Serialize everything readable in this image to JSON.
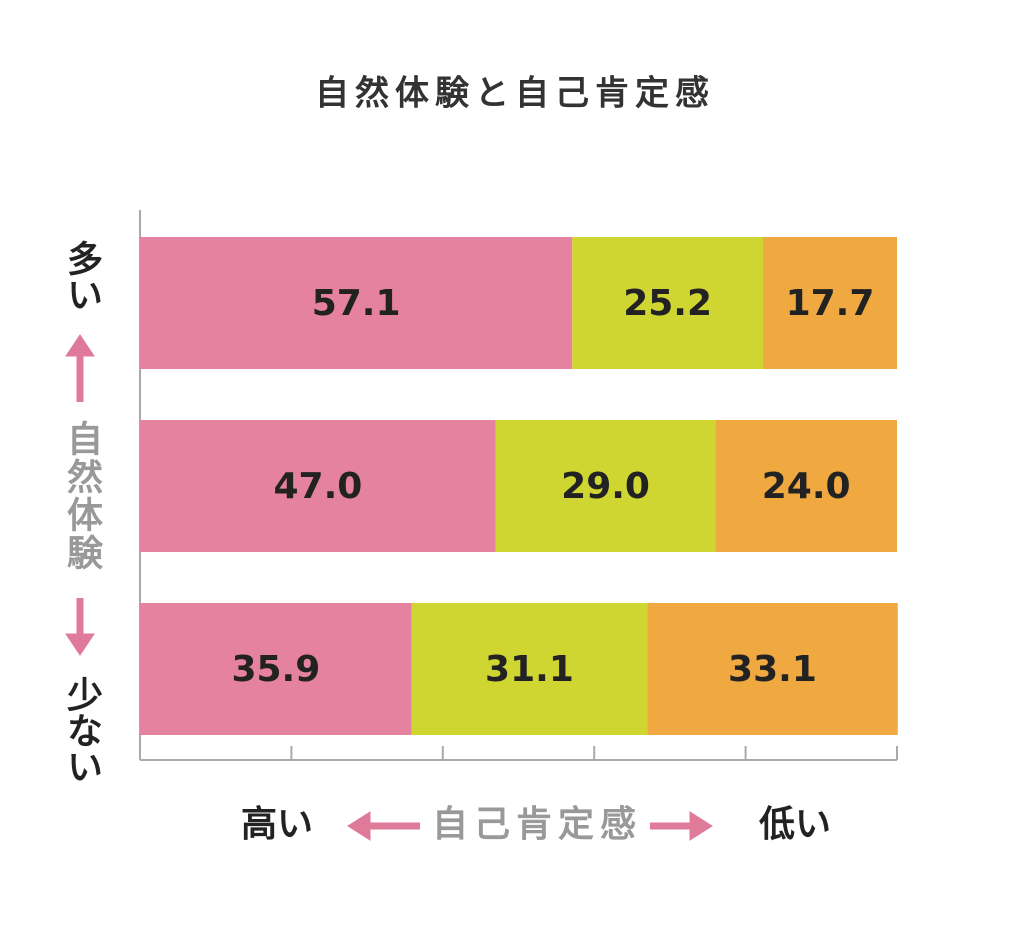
{
  "chart_data": {
    "type": "stacked-bar-horizontal",
    "title": "自然体験と自己肯定感",
    "y_label_top": "多い",
    "y_label": "自然体験",
    "y_label_bottom": "少ない",
    "x_label_left": "高い",
    "x_label": "自己肯定感",
    "x_label_right": "低い",
    "xlim": [
      0,
      100
    ],
    "xticks": [
      0,
      20,
      40,
      60,
      80,
      100
    ],
    "series": [
      {
        "color": "#e5829f",
        "values": [
          57.1,
          47,
          35.9
        ],
        "value_labels": [
          "57.1",
          "47.0",
          "35.9"
        ]
      },
      {
        "color": "#cfd632",
        "values": [
          25.2,
          29,
          31.1
        ],
        "value_labels": [
          "25.2",
          "29.0",
          "31.1"
        ]
      },
      {
        "color": "#f0a941",
        "values": [
          17.7,
          24,
          33.1
        ],
        "value_labels": [
          "17.7",
          "24.0",
          "33.1"
        ]
      }
    ]
  }
}
